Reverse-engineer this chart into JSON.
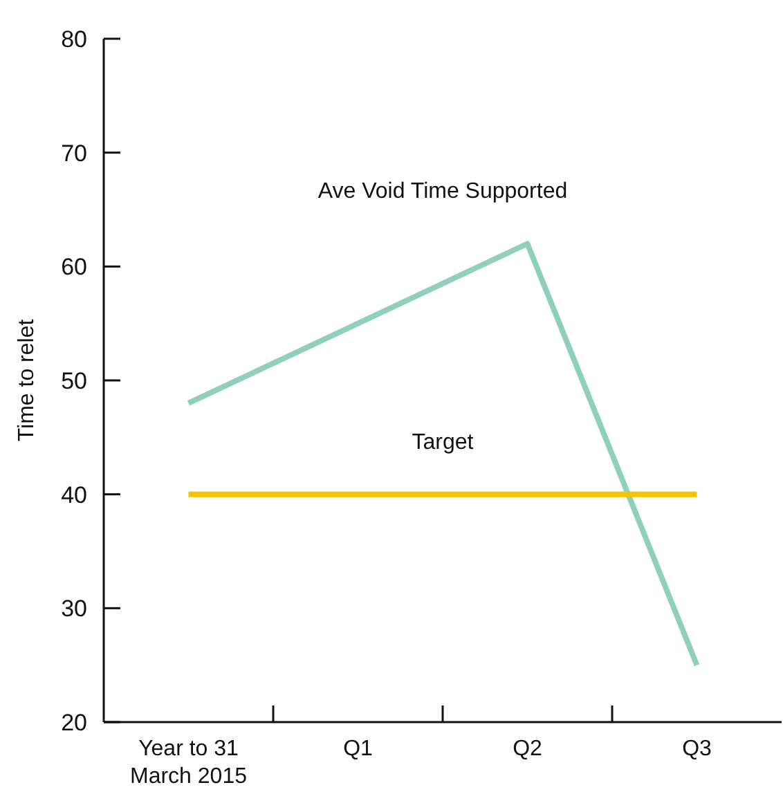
{
  "chart_data": {
    "type": "line",
    "ylabel": "Time to relet",
    "categories": [
      "Year to 31 March 2015",
      "Q1",
      "Q2",
      "Q3"
    ],
    "ylim": [
      20,
      80
    ],
    "yticks": [
      20,
      30,
      40,
      50,
      60,
      70,
      80
    ],
    "series": [
      {
        "name": "Ave Void Time Supported",
        "color": "#8fd1b8",
        "values": [
          48,
          55,
          62,
          25
        ]
      },
      {
        "name": "Target",
        "color": "#f5c400",
        "values": [
          40,
          40,
          40,
          40
        ]
      }
    ]
  }
}
